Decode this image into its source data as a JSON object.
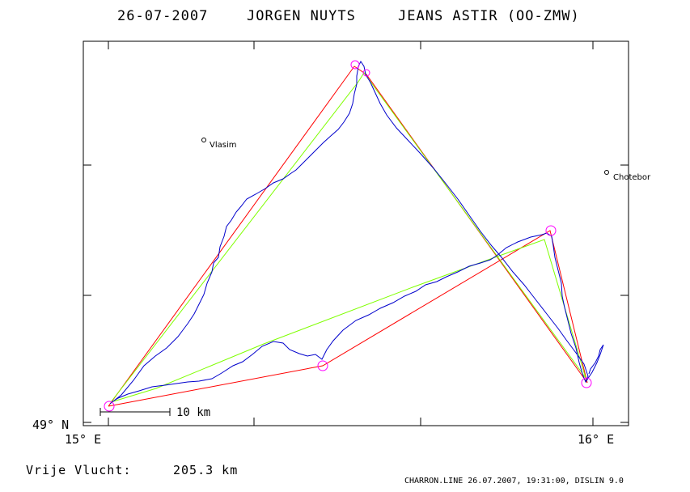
{
  "header": {
    "date": "26-07-2007",
    "pilot": "JORGEN NUYTS",
    "glider": "JEANS ASTIR (OO-ZMW)"
  },
  "axes": {
    "y_label": "49° N",
    "x_labels": [
      "15° E",
      "16° E"
    ]
  },
  "towns": [
    {
      "name": "Vlasim"
    },
    {
      "name": "Chotebor"
    }
  ],
  "scale_bar": {
    "label": "10 km"
  },
  "footer": {
    "flight_label": "Vrije Vlucht:",
    "flight_distance": "205.3 km",
    "software": "CHARRON.LINE 26.07.2007, 19:31:00, DISLIN 9.0"
  },
  "colors": {
    "track": "#0000cc",
    "declared_course": "#ff0000",
    "optimized_course": "#7fff00",
    "turnpoint": "#ff00ff",
    "frame": "#000000"
  }
}
